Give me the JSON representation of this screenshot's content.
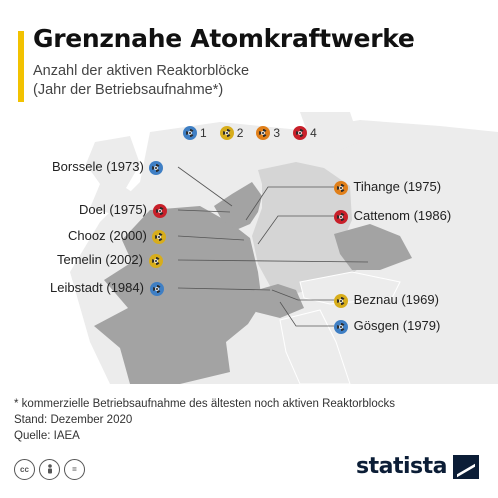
{
  "header": {
    "title": "Grenznahe Atomkraftwerke",
    "subtitle_line1": "Anzahl der aktiven Reaktorblöcke",
    "subtitle_line2": "(Jahr der Betriebsaufnahme*)"
  },
  "legend": [
    {
      "label": "1",
      "color": "#3f7fc4"
    },
    {
      "label": "2",
      "color": "#d7ad1c"
    },
    {
      "label": "3",
      "color": "#e07f19"
    },
    {
      "label": "4",
      "color": "#c8202a"
    }
  ],
  "plants_left": [
    {
      "label": "Borssele (1973)",
      "reactors": 1,
      "color": "#3f7fc4"
    },
    {
      "label": "Doel (1975)",
      "reactors": 4,
      "color": "#c8202a"
    },
    {
      "label": "Chooz (2000)",
      "reactors": 2,
      "color": "#d7ad1c"
    },
    {
      "label": "Temelin (2002)",
      "reactors": 2,
      "color": "#d7ad1c"
    },
    {
      "label": "Leibstadt  (1984)",
      "reactors": 1,
      "color": "#3f7fc4"
    }
  ],
  "plants_right": [
    {
      "label": "Tihange (1975)",
      "reactors": 3,
      "color": "#e07f19"
    },
    {
      "label": "Cattenom (1986)",
      "reactors": 4,
      "color": "#c8202a"
    },
    {
      "label": "Beznau (1969)",
      "reactors": 2,
      "color": "#d7ad1c"
    },
    {
      "label": "Gösgen (1979)",
      "reactors": 1,
      "color": "#3f7fc4"
    }
  ],
  "footnote": {
    "line1": "* kommerzielle Betriebsaufnahme des ältesten noch aktiven Reaktorblocks",
    "line2": "Stand: Dezember 2020",
    "line3": "Quelle: IAEA"
  },
  "license_icons": [
    "cc",
    "by",
    "="
  ],
  "brand": "statista",
  "colors": {
    "accent": "#f2c200",
    "map_base": "#e4e4e4",
    "map_dark": "#a3a3a3",
    "map_germany": "#d5d5d5"
  }
}
